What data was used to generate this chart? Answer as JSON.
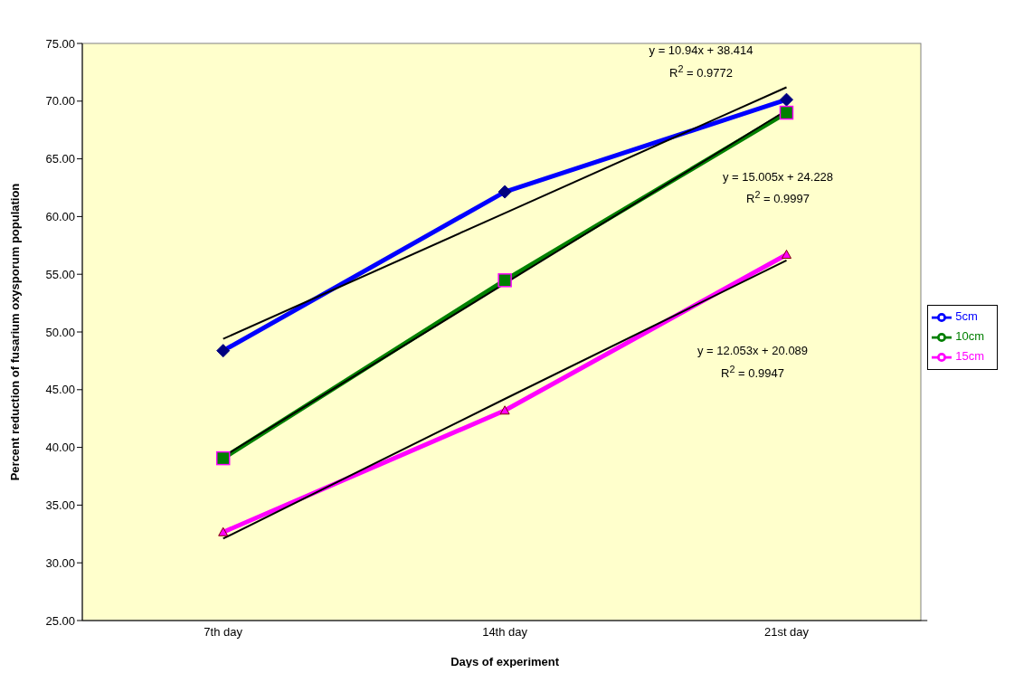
{
  "chart_data": {
    "type": "line",
    "xlabel": "Days of experiment",
    "ylabel": "Percent reduction of fusarium oxysporum population",
    "categories": [
      "7th day",
      "14th day",
      "21st day"
    ],
    "series": [
      {
        "name": "5cm",
        "color": "#0000ff",
        "marker": "diamond",
        "values": [
          48.38,
          62.14,
          70.13
        ]
      },
      {
        "name": "10cm",
        "color": "#008000",
        "marker": "square",
        "values": [
          39.06,
          54.48,
          69.0
        ]
      },
      {
        "name": "15cm",
        "color": "#ff00ff",
        "marker": "triangle",
        "values": [
          32.66,
          43.2,
          56.7
        ]
      },
      {
        "color": "#000000",
        "marker": "none",
        "values": [
          49.4,
          60.3,
          71.2
        ]
      },
      {
        "color": "#000000",
        "marker": "none",
        "values": [
          39.2,
          54.2,
          69.2
        ]
      },
      {
        "color": "#000000",
        "marker": "none",
        "values": [
          32.1,
          44.2,
          56.2
        ]
      }
    ],
    "ylim": [
      25,
      75
    ],
    "yticks": [
      {
        "value": 25,
        "label": "25.00"
      },
      {
        "value": 30,
        "label": "30.00"
      },
      {
        "value": 35,
        "label": "35.00"
      },
      {
        "value": 40,
        "label": "40.00"
      },
      {
        "value": 45,
        "label": "45.00"
      },
      {
        "value": 50,
        "label": "50.00"
      },
      {
        "value": 55,
        "label": "55.00"
      },
      {
        "value": 60,
        "label": "60.00"
      },
      {
        "value": 65,
        "label": "65.00"
      },
      {
        "value": 70,
        "label": "70.00"
      },
      {
        "value": 75,
        "label": "75.00"
      }
    ],
    "grid": false,
    "legend": "right",
    "annotations": [
      "y = 10.94x + 38.414",
      "R$^{2}$ = 0.9772",
      "y = 15.005x + 24.228",
      "R$^{2}$ = 0.9997",
      "y = 12.053x + 20.089",
      "R$^{2}$ = 0.9947"
    ]
  }
}
